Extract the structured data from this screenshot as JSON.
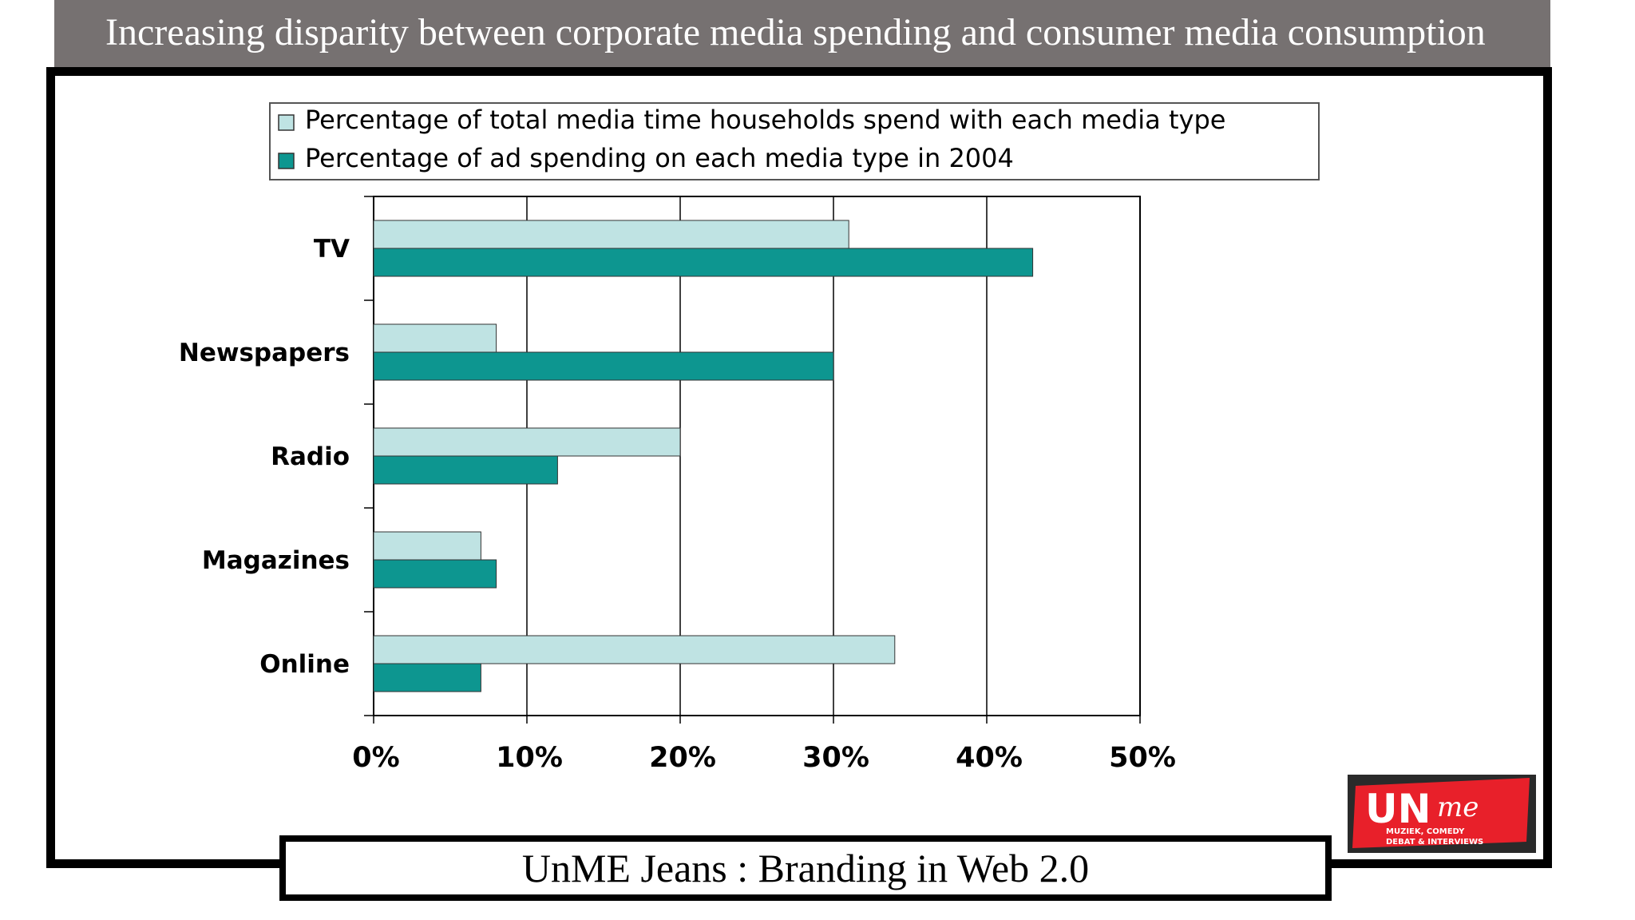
{
  "slide": {
    "title": "Increasing disparity between corporate media spending and consumer media consumption",
    "footer": "UnME Jeans : Branding in Web 2.0"
  },
  "logo": {
    "main_text": "UN",
    "script_text": "me",
    "tagline_1": "MUZIEK, COMEDY",
    "tagline_2": "DEBAT & INTERVIEWS",
    "colors": {
      "red": "#e8202a",
      "dark": "#2a2a2a",
      "white": "#ffffff"
    }
  },
  "chart_data": {
    "type": "bar",
    "orientation": "horizontal",
    "categories": [
      "TV",
      "Newspapers",
      "Radio",
      "Magazines",
      "Online"
    ],
    "series": [
      {
        "name": "Percentage of total media time households spend with each media type",
        "values": [
          31,
          8,
          20,
          7,
          34
        ],
        "color": "#bfe3e3"
      },
      {
        "name": "Percentage of ad spending on each media type in 2004",
        "values": [
          43,
          30,
          12,
          8,
          7
        ],
        "color": "#0d9690"
      }
    ],
    "xlim": [
      0,
      50
    ],
    "x_ticks": [
      "0%",
      "10%",
      "20%",
      "30%",
      "40%",
      "50%"
    ],
    "grid": true,
    "legend_position": "top"
  }
}
